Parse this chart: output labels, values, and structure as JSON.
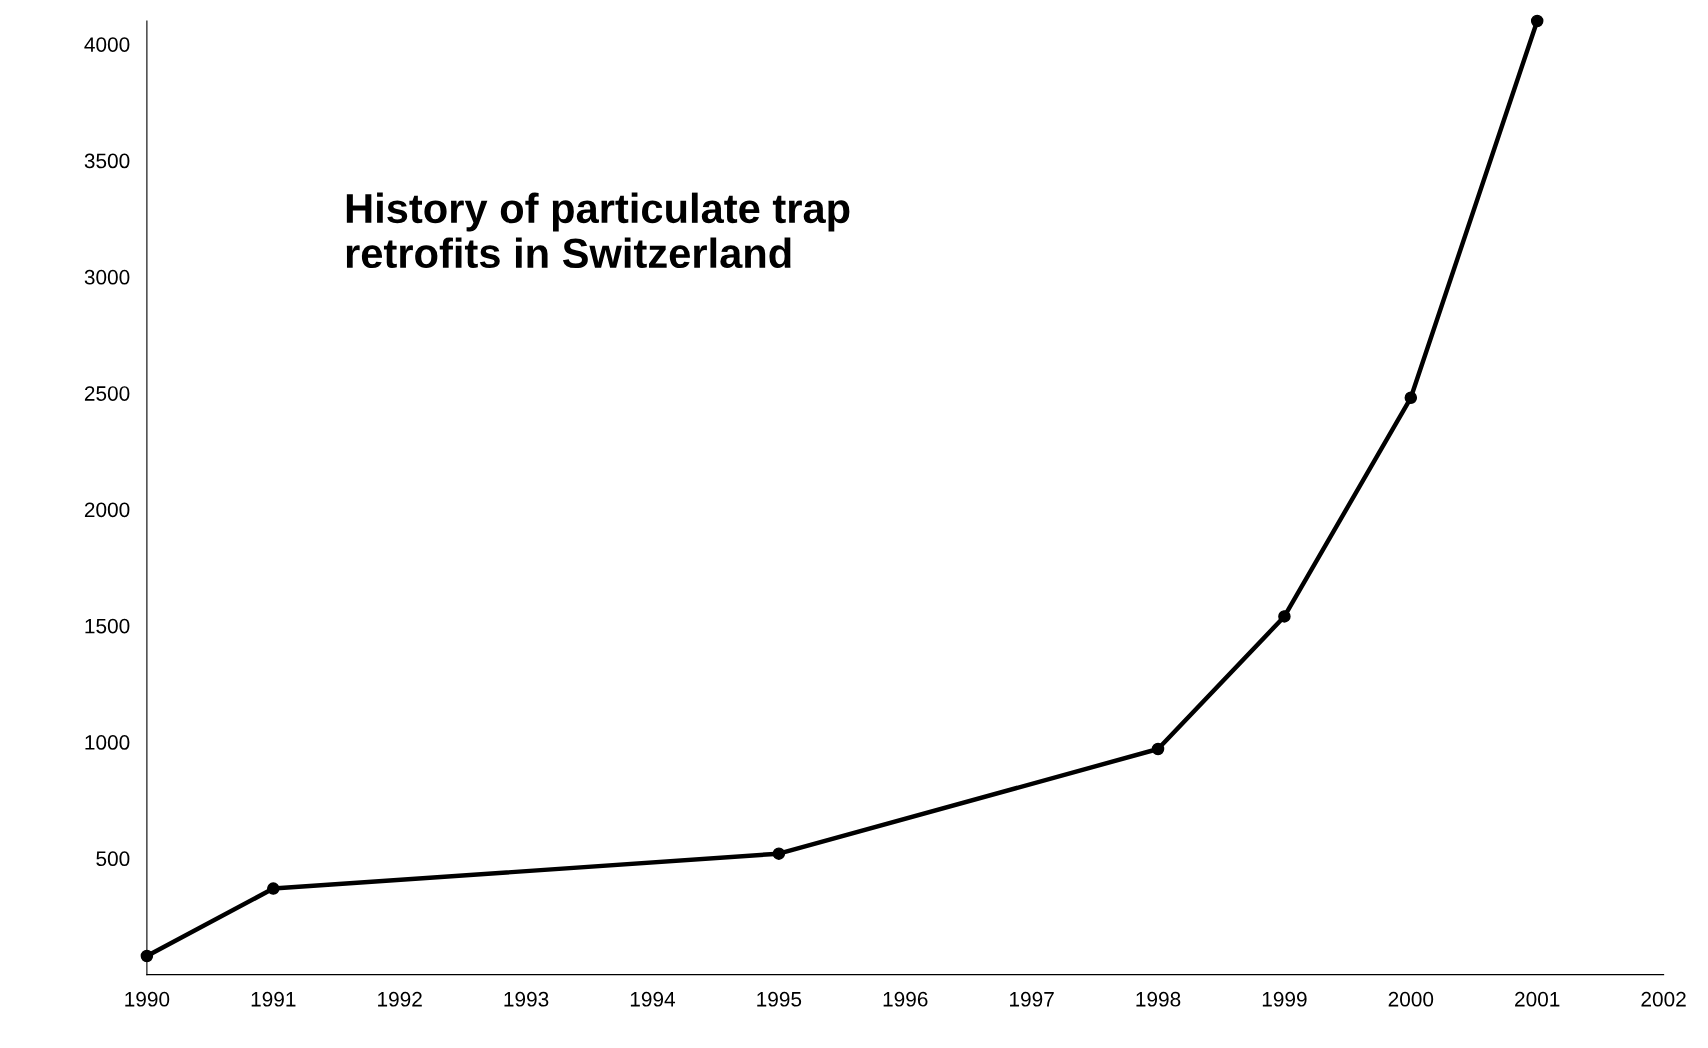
{
  "chart_data": {
    "type": "line",
    "title": "History of particulate trap\nretrofits in Switzerland",
    "x": [
      1990,
      1991,
      1995,
      1998,
      1999,
      2000,
      2001
    ],
    "series": [
      {
        "color": "#000000",
        "values": [
          80,
          370,
          520,
          970,
          1540,
          2480,
          4100
        ]
      }
    ],
    "xlim": [
      1990,
      2002
    ],
    "xticks": [
      1990,
      1991,
      1992,
      1993,
      1994,
      1995,
      1996,
      1997,
      1998,
      1999,
      2000,
      2001,
      2002
    ],
    "ylim": [
      0,
      4100
    ],
    "yticks": [
      500,
      1000,
      1500,
      2000,
      2500,
      3000,
      3500,
      4000
    ],
    "marker": "circle",
    "line_style": "solid",
    "grid": false,
    "legend": false
  }
}
